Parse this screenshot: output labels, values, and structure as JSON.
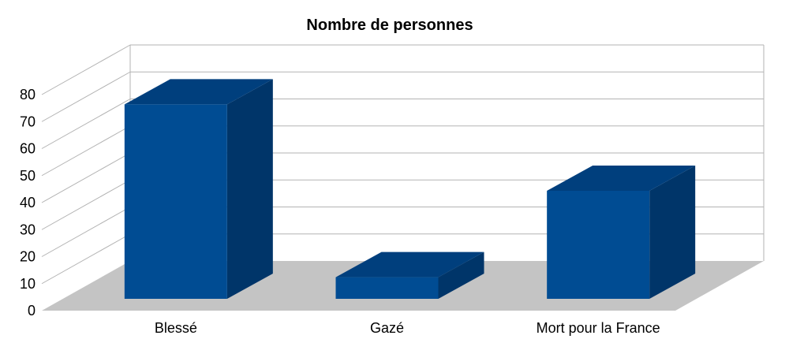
{
  "chart_data": {
    "type": "bar",
    "title": "Nombre de personnes",
    "xlabel": "",
    "ylabel": "",
    "categories": [
      "Blessé",
      "Gazé",
      "Mort pour la France"
    ],
    "values": [
      72,
      8,
      40
    ],
    "ylim": [
      0,
      80
    ],
    "yticks": [
      "0",
      "10",
      "20",
      "30",
      "40",
      "50",
      "60",
      "70",
      "80"
    ],
    "grid": true,
    "legend": "none",
    "style": "3d",
    "colors": {
      "front": "#004c93",
      "top": "#003f7d",
      "side": "#003569",
      "floor": "#c4c4c4",
      "grid": "#b3b3b3"
    }
  }
}
